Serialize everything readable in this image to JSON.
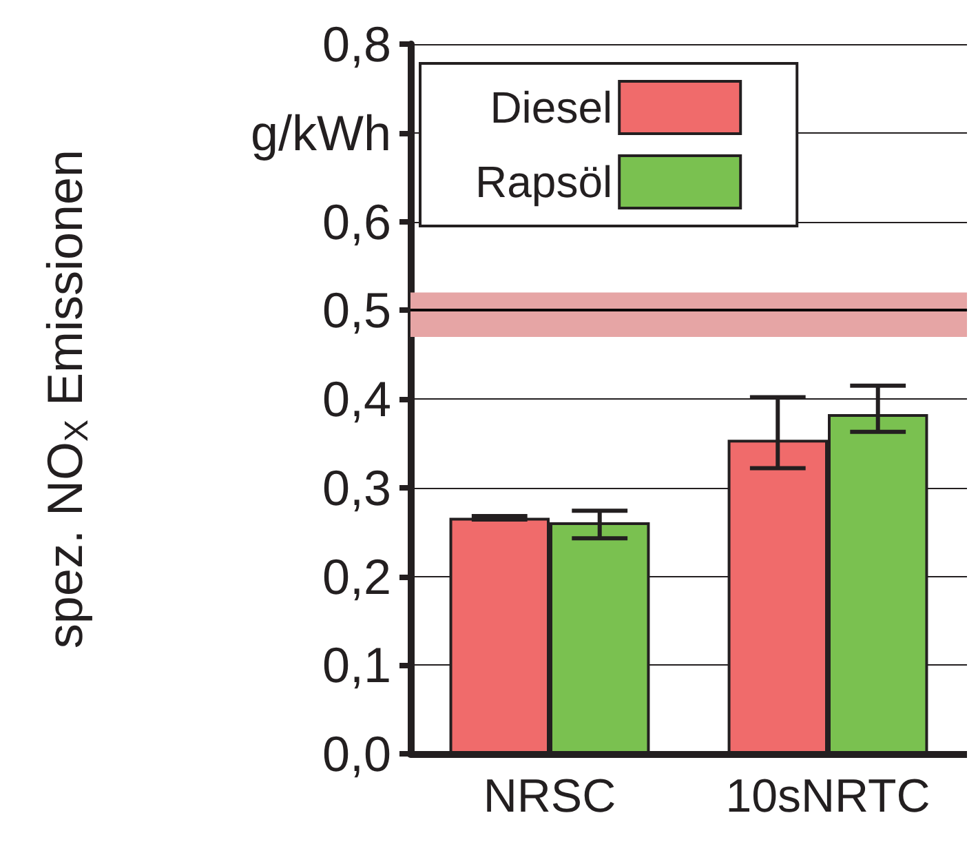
{
  "chart_data": {
    "type": "bar",
    "ylabel": "spez. NO$_{X}$ Emissionen",
    "categories": [
      "NRSC",
      "10sNRTC"
    ],
    "series": [
      {
        "name": "Diesel",
        "color": "#f06b6b",
        "values": [
          0.266,
          0.354
        ],
        "errors": [
          0.002,
          [
            0.322,
            0.402
          ]
        ]
      },
      {
        "name": "Rapsöl",
        "color": "#7ac150",
        "values": [
          0.261,
          0.383
        ],
        "errors": [
          [
            0.243,
            0.274
          ],
          [
            0.363,
            0.415
          ]
        ]
      }
    ],
    "ylim": [
      0,
      0.8
    ],
    "yticks": [
      {
        "value": 0,
        "label": "0,0"
      },
      {
        "value": 0.1,
        "label": "0,1"
      },
      {
        "value": 0.2,
        "label": "0,2"
      },
      {
        "value": 0.3,
        "label": "0,3"
      },
      {
        "value": 0.4,
        "label": "0,4"
      },
      {
        "value": 0.5,
        "label": "0,5"
      },
      {
        "value": 0.6,
        "label": "0,6"
      },
      {
        "value": 0.7,
        "label": "g/kWh"
      },
      {
        "value": 0.8,
        "label": "0,8"
      }
    ],
    "ref_lines": [
      {
        "axis": "y",
        "value": 0.5,
        "color": "#000000",
        "line_style": "solid"
      }
    ],
    "bands": [
      {
        "axis": "y",
        "from": 0.47,
        "to": 0.52,
        "color": "#e6a5a5"
      }
    ],
    "grid": "y",
    "legend": "top left"
  }
}
